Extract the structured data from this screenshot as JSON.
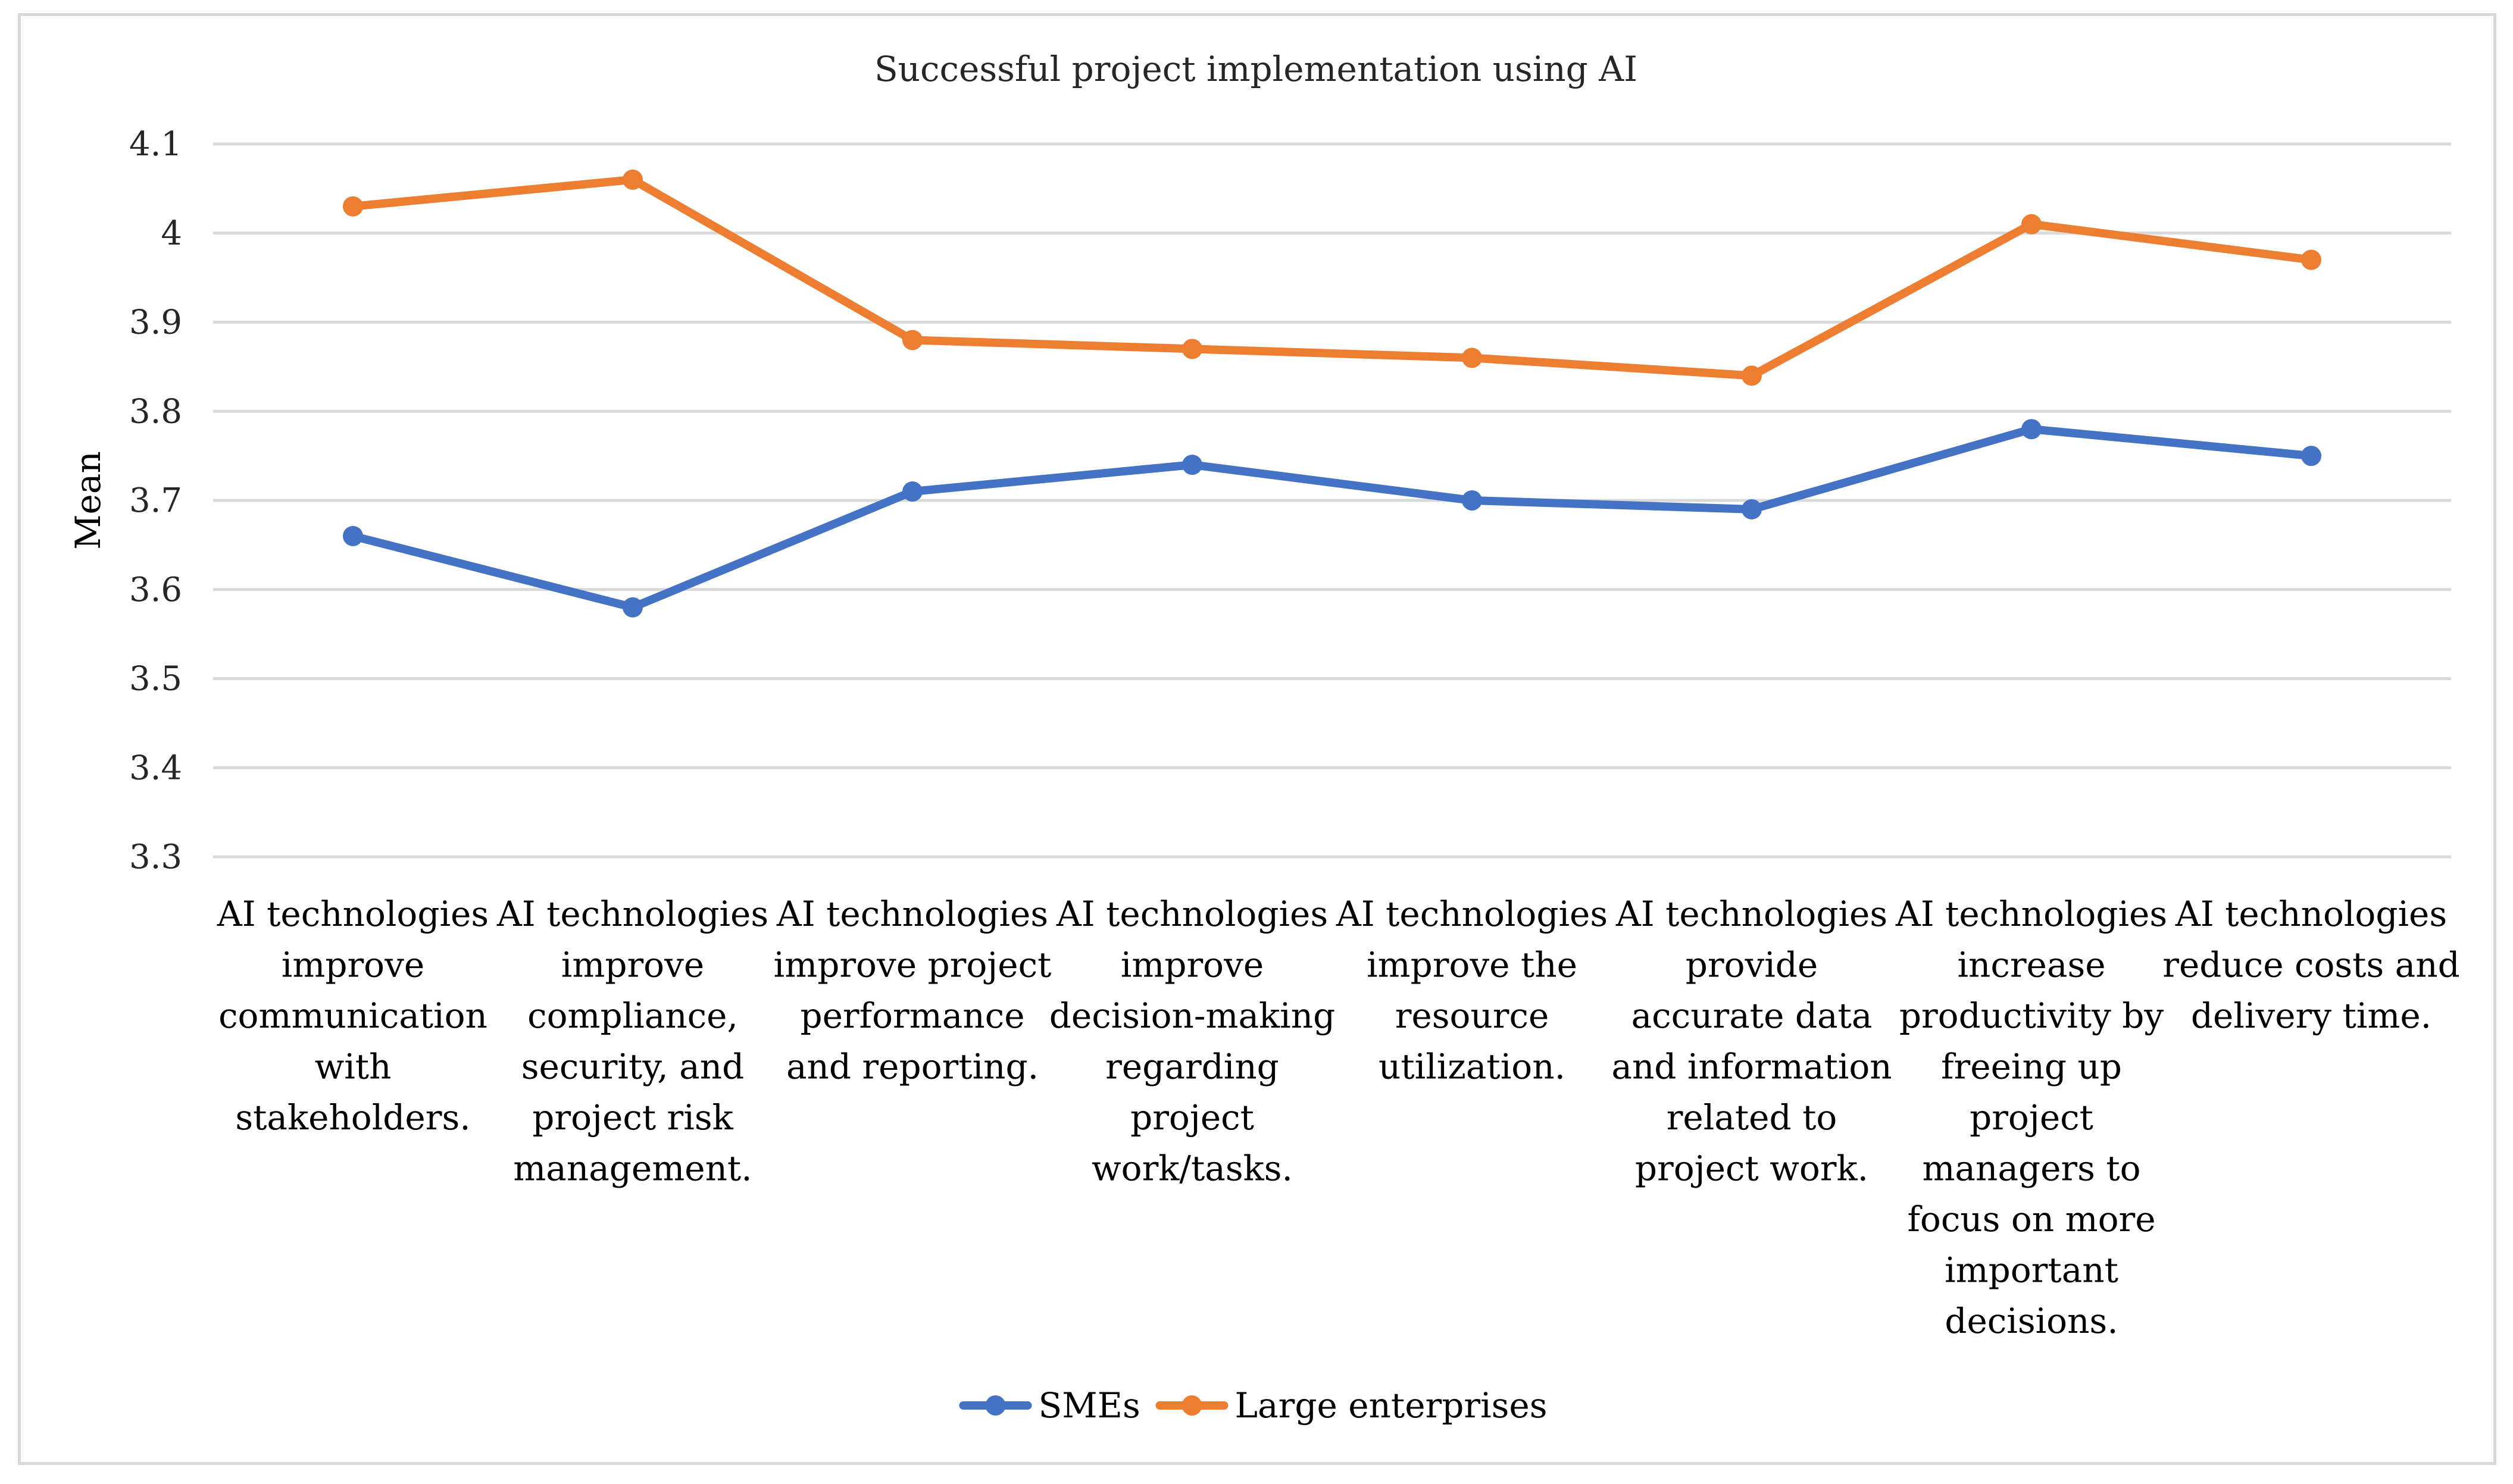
{
  "chart_data": {
    "type": "line",
    "title": "Successful project implementation using AI",
    "ylabel": "Mean",
    "xlabel": "",
    "ylim": [
      3.3,
      4.1
    ],
    "yticks": [
      "3.3",
      "3.4",
      "3.5",
      "3.6",
      "3.7",
      "3.8",
      "3.9",
      "4",
      "4.1"
    ],
    "grid": true,
    "legend_position": "bottom",
    "categories": [
      [
        "AI technologies",
        "improve",
        "communication",
        "with",
        "stakeholders."
      ],
      [
        "AI technologies",
        "improve",
        "compliance,",
        "security, and",
        "project risk",
        "management."
      ],
      [
        "AI technologies",
        "improve project",
        "performance",
        "and reporting."
      ],
      [
        "AI technologies",
        "improve",
        "decision-making",
        "regarding",
        "project",
        "work/tasks."
      ],
      [
        "AI technologies",
        "improve the",
        "resource",
        "utilization."
      ],
      [
        "AI technologies",
        "provide",
        "accurate data",
        "and information",
        "related to",
        "project work."
      ],
      [
        "AI technologies",
        "increase",
        "productivity by",
        "freeing up",
        "project",
        "managers to",
        "focus on more",
        "important",
        "decisions."
      ],
      [
        "AI technologies",
        "reduce costs and",
        "delivery time."
      ]
    ],
    "series": [
      {
        "name": "SMEs",
        "color": "#4472c4",
        "values": [
          3.66,
          3.58,
          3.71,
          3.74,
          3.7,
          3.69,
          3.78,
          3.75
        ]
      },
      {
        "name": "Large enterprises",
        "color": "#ed7d31",
        "values": [
          4.03,
          4.06,
          3.88,
          3.87,
          3.86,
          3.84,
          4.01,
          3.97
        ]
      }
    ]
  }
}
